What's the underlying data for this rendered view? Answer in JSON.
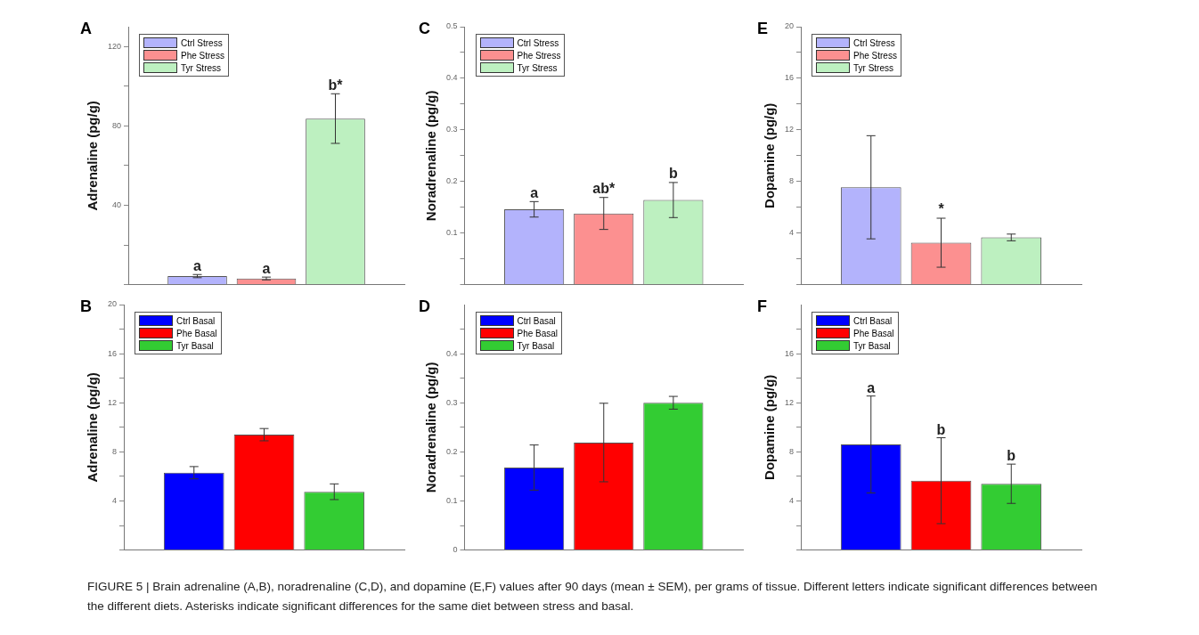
{
  "chart_data": [
    {
      "type": "bar",
      "title": "A",
      "ylabel": "Adrenaline (pg/g)",
      "categories": [
        null
      ],
      "tick_labels": "y",
      "legend": "top left",
      "ylim": [
        0,
        130
      ],
      "yticks": [
        {
          "value": 0,
          "label": null
        },
        {
          "value": 20,
          "label": null
        },
        40,
        {
          "value": 60,
          "label": null
        },
        80,
        {
          "value": 100,
          "label": null
        },
        120
      ],
      "series": [
        {
          "name": "Ctrl Stress",
          "color": "#b3b3fc",
          "values": [
            4.3
          ],
          "errors": [
            0.8
          ]
        },
        {
          "name": "Phe Stress",
          "color": "#fc9090",
          "values": [
            3.1
          ],
          "errors": [
            0.7
          ]
        },
        {
          "name": "Tyr Stress",
          "color": "#bdf0c0",
          "values": [
            83.7
          ],
          "errors": [
            12.5
          ]
        }
      ],
      "annotations": [
        {
          "text": "a",
          "y": 5.1
        },
        {
          "text": "a",
          "y": 3.8
        },
        {
          "text": "b*",
          "y": 96.2
        },
        "FIGURE 5 | Brain adrenaline (A,B), noradrenaline (C,D), and dopamine (E,F) values after 90 days (mean ± SEM), per grams of tissue. Different letters indicate significant differences between the different diets. Asterisks indicate significant differences for the same diet between stress and basal."
      ]
    },
    {
      "type": "bar",
      "title": "C",
      "ylabel": "Noradrenaline (pg/g)",
      "categories": [
        null
      ],
      "tick_labels": "y",
      "legend": "top left",
      "ylim": [
        0,
        0.5
      ],
      "yticks": [
        {
          "value": 0,
          "label": null
        },
        {
          "value": 0.05,
          "label": null
        },
        0.1,
        {
          "value": 0.15,
          "label": null
        },
        0.2,
        {
          "value": 0.25,
          "label": null
        },
        0.3,
        {
          "value": 0.35,
          "label": null
        },
        0.4,
        {
          "value": 0.45,
          "label": null
        },
        0.5
      ],
      "series": [
        {
          "name": "Ctrl Stress",
          "color": "#b3b3fc",
          "values": [
            0.146
          ],
          "errors": [
            0.015
          ]
        },
        {
          "name": "Phe Stress",
          "color": "#fc9090",
          "values": [
            0.138
          ],
          "errors": [
            0.031
          ]
        },
        {
          "name": "Tyr Stress",
          "color": "#bdf0c0",
          "values": [
            0.164
          ],
          "errors": [
            0.034
          ]
        }
      ],
      "annotations": [
        {
          "text": "a",
          "y": 0.161
        },
        {
          "text": "ab*",
          "y": 0.169
        },
        {
          "text": "b",
          "y": 0.198
        }
      ]
    },
    {
      "type": "bar",
      "title": "E",
      "ylabel": "Dopamine (pg/g)",
      "categories": [
        null
      ],
      "tick_labels": "y",
      "legend": "top left",
      "ylim": [
        0,
        20
      ],
      "yticks": [
        {
          "value": 0,
          "label": null
        },
        {
          "value": 2,
          "label": null
        },
        4,
        {
          "value": 6,
          "label": null
        },
        8,
        {
          "value": 10,
          "label": null
        },
        12,
        {
          "value": 14,
          "label": null
        },
        16,
        {
          "value": 18,
          "label": null
        },
        20
      ],
      "series": [
        {
          "name": "Ctrl Stress",
          "color": "#b3b3fc",
          "values": [
            7.55
          ],
          "errors": [
            4.0
          ]
        },
        {
          "name": "Phe Stress",
          "color": "#fc9090",
          "values": [
            3.25
          ],
          "errors": [
            1.9
          ]
        },
        {
          "name": "Tyr Stress",
          "color": "#bdf0c0",
          "values": [
            3.66
          ],
          "errors": [
            0.26
          ]
        }
      ],
      "annotations": [
        {
          "text": "*",
          "y": 5.15
        }
      ]
    },
    {
      "type": "bar",
      "title": "B",
      "ylabel": "Adrenaline (pg/g)",
      "categories": [
        null
      ],
      "tick_labels": "y",
      "legend": "top left",
      "ylim": [
        0,
        20
      ],
      "yticks": [
        {
          "value": 0,
          "label": null
        },
        {
          "value": 2,
          "label": null
        },
        4,
        {
          "value": 6,
          "label": null
        },
        8,
        {
          "value": 10,
          "label": null
        },
        12,
        {
          "value": 14,
          "label": null
        },
        16,
        {
          "value": 18,
          "label": null
        },
        20
      ],
      "series": [
        {
          "name": "Ctrl Basal",
          "color": "#0000ff",
          "values": [
            6.3
          ],
          "errors": [
            0.5
          ]
        },
        {
          "name": "Phe Basal",
          "color": "#ff0000",
          "values": [
            9.4
          ],
          "errors": [
            0.5
          ]
        },
        {
          "name": "Tyr Basal",
          "color": "#33cc33",
          "values": [
            4.75
          ],
          "errors": [
            0.64
          ]
        }
      ]
    },
    {
      "type": "bar",
      "title": "D",
      "ylabel": "Noradrenaline (pg/g)",
      "categories": [
        null
      ],
      "tick_labels": "y",
      "legend": "top left",
      "ylim": [
        0,
        0.5
      ],
      "yticks": [
        0,
        {
          "value": 0.05,
          "label": null
        },
        0.1,
        {
          "value": 0.15,
          "label": null
        },
        0.2,
        {
          "value": 0.25,
          "label": null
        },
        0.3,
        {
          "value": 0.35,
          "label": null
        },
        0.4,
        {
          "value": 0.45,
          "label": null
        }
      ],
      "series": [
        {
          "name": "Ctrl Basal",
          "color": "#0000ff",
          "values": [
            0.168
          ],
          "errors": [
            0.046
          ]
        },
        {
          "name": "Phe Basal",
          "color": "#ff0000",
          "values": [
            0.219
          ],
          "errors": [
            0.08
          ]
        },
        {
          "name": "Tyr Basal",
          "color": "#33cc33",
          "values": [
            0.3
          ],
          "errors": [
            0.013
          ]
        }
      ]
    },
    {
      "type": "bar",
      "title": "F",
      "ylabel": "Dopamine (pg/g)",
      "categories": [
        null
      ],
      "tick_labels": "y",
      "legend": "top left",
      "ylim": [
        0,
        20
      ],
      "yticks": [
        {
          "value": 0,
          "label": null
        },
        {
          "value": 2,
          "label": null
        },
        4,
        {
          "value": 6,
          "label": null
        },
        8,
        {
          "value": 10,
          "label": null
        },
        12,
        {
          "value": 14,
          "label": null
        },
        16,
        {
          "value": 18,
          "label": null
        }
      ],
      "series": [
        {
          "name": "Ctrl Basal",
          "color": "#0000ff",
          "values": [
            8.6
          ],
          "errors": [
            3.95
          ]
        },
        {
          "name": "Phe Basal",
          "color": "#ff0000",
          "values": [
            5.65
          ],
          "errors": [
            3.5
          ]
        },
        {
          "name": "Tyr Basal",
          "color": "#33cc33",
          "values": [
            5.4
          ],
          "errors": [
            1.6
          ]
        }
      ],
      "annotations": [
        {
          "text": "a",
          "y": 12.5
        },
        {
          "text": "b",
          "y": 9.1
        },
        {
          "text": "b",
          "y": 7.0
        }
      ]
    }
  ]
}
